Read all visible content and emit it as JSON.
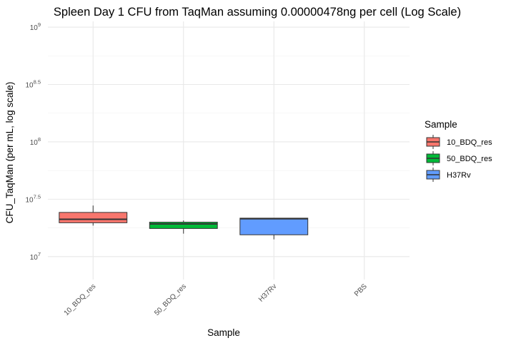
{
  "chart_data": {
    "type": "box",
    "title": "Spleen Day 1 CFU from TaqMan assuming 0.00000478ng per cell (Log Scale)",
    "xlabel": "Sample",
    "ylabel": "CFU_TaqMan (per mL, log scale)",
    "y_scale": "log10",
    "ylim_log10": [
      6.8,
      9.05
    ],
    "y_ticks": [
      {
        "base": "10",
        "exp": "7",
        "value_log10": 7
      },
      {
        "base": "10",
        "exp": "7.5",
        "value_log10": 7.5
      },
      {
        "base": "10",
        "exp": "8",
        "value_log10": 8
      },
      {
        "base": "10",
        "exp": "8.5",
        "value_log10": 8.5
      },
      {
        "base": "10",
        "exp": "9",
        "value_log10": 9
      }
    ],
    "categories": [
      "10_BDQ_res",
      "50_BDQ_res",
      "H37Rv",
      "PBS"
    ],
    "boxes": [
      {
        "category": "10_BDQ_res",
        "color": "#F8766D",
        "whisker_low": 7.27,
        "q1": 7.295,
        "median": 7.325,
        "q3": 7.385,
        "whisker_high": 7.445
      },
      {
        "category": "50_BDQ_res",
        "color": "#00BA38",
        "whisker_low": 7.2,
        "q1": 7.245,
        "median": 7.285,
        "q3": 7.3,
        "whisker_high": 7.315
      },
      {
        "category": "H37Rv",
        "color": "#619CFF",
        "whisker_low": 7.15,
        "q1": 7.19,
        "median": 7.33,
        "q3": 7.335,
        "whisker_high": 7.335
      }
    ],
    "legend": {
      "title": "Sample",
      "position": "right",
      "entries": [
        {
          "label": "10_BDQ_res",
          "color": "#F8766D"
        },
        {
          "label": "50_BDQ_res",
          "color": "#00BA38"
        },
        {
          "label": "H37Rv",
          "color": "#619CFF"
        }
      ]
    },
    "grid": true
  }
}
